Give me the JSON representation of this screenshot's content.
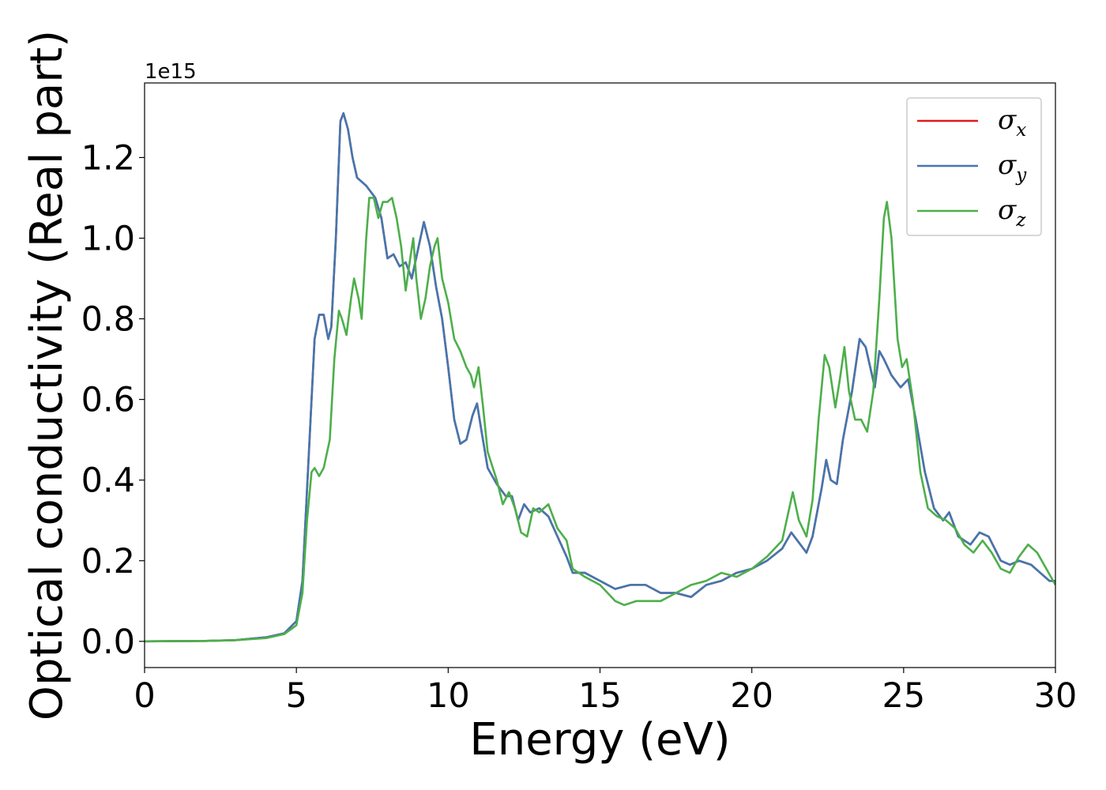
{
  "chart_data": {
    "type": "line",
    "xlabel": "Energy (eV)",
    "ylabel": "Optical conductivity (Real part)",
    "offset_text": "1e15",
    "xlim": [
      0,
      30
    ],
    "ylim": [
      -0.065,
      1.385
    ],
    "x_ticks": [
      "0",
      "5",
      "10",
      "15",
      "20",
      "25",
      "30"
    ],
    "y_ticks": [
      "0.0",
      "0.2",
      "0.4",
      "0.6",
      "0.8",
      "1.0",
      "1.2"
    ],
    "grid": false,
    "legend_position": "top-right",
    "series": [
      {
        "name": "σx",
        "legend_main": "σ",
        "legend_sub": "x",
        "color": "#e41a1c",
        "points": [
          [
            0,
            0.0
          ],
          [
            2,
            0.001
          ],
          [
            3,
            0.003
          ],
          [
            4,
            0.01
          ],
          [
            4.6,
            0.02
          ],
          [
            5.0,
            0.05
          ],
          [
            5.2,
            0.15
          ],
          [
            5.4,
            0.45
          ],
          [
            5.6,
            0.75
          ],
          [
            5.75,
            0.81
          ],
          [
            5.9,
            0.81
          ],
          [
            6.05,
            0.75
          ],
          [
            6.15,
            0.78
          ],
          [
            6.3,
            1.0
          ],
          [
            6.45,
            1.29
          ],
          [
            6.55,
            1.31
          ],
          [
            6.7,
            1.27
          ],
          [
            6.85,
            1.2
          ],
          [
            7.0,
            1.15
          ],
          [
            7.3,
            1.13
          ],
          [
            7.6,
            1.1
          ],
          [
            7.8,
            1.05
          ],
          [
            8.0,
            0.95
          ],
          [
            8.2,
            0.96
          ],
          [
            8.4,
            0.93
          ],
          [
            8.6,
            0.94
          ],
          [
            8.8,
            0.9
          ],
          [
            9.0,
            0.97
          ],
          [
            9.2,
            1.04
          ],
          [
            9.4,
            0.98
          ],
          [
            9.6,
            0.88
          ],
          [
            9.8,
            0.8
          ],
          [
            10.0,
            0.68
          ],
          [
            10.2,
            0.55
          ],
          [
            10.4,
            0.49
          ],
          [
            10.6,
            0.5
          ],
          [
            10.8,
            0.56
          ],
          [
            10.95,
            0.59
          ],
          [
            11.1,
            0.52
          ],
          [
            11.3,
            0.43
          ],
          [
            11.6,
            0.39
          ],
          [
            11.9,
            0.36
          ],
          [
            12.1,
            0.36
          ],
          [
            12.3,
            0.3
          ],
          [
            12.5,
            0.34
          ],
          [
            12.7,
            0.32
          ],
          [
            13.0,
            0.33
          ],
          [
            13.3,
            0.31
          ],
          [
            13.6,
            0.26
          ],
          [
            13.9,
            0.21
          ],
          [
            14.1,
            0.17
          ],
          [
            14.5,
            0.17
          ],
          [
            15.0,
            0.15
          ],
          [
            15.5,
            0.13
          ],
          [
            16.0,
            0.14
          ],
          [
            16.5,
            0.14
          ],
          [
            17.0,
            0.12
          ],
          [
            17.5,
            0.12
          ],
          [
            18.0,
            0.11
          ],
          [
            18.5,
            0.14
          ],
          [
            19.0,
            0.15
          ],
          [
            19.5,
            0.17
          ],
          [
            20.0,
            0.18
          ],
          [
            20.5,
            0.2
          ],
          [
            21.0,
            0.23
          ],
          [
            21.3,
            0.27
          ],
          [
            21.6,
            0.24
          ],
          [
            21.8,
            0.22
          ],
          [
            22.0,
            0.26
          ],
          [
            22.3,
            0.38
          ],
          [
            22.45,
            0.45
          ],
          [
            22.6,
            0.4
          ],
          [
            22.8,
            0.39
          ],
          [
            23.0,
            0.5
          ],
          [
            23.3,
            0.62
          ],
          [
            23.55,
            0.75
          ],
          [
            23.75,
            0.73
          ],
          [
            23.9,
            0.68
          ],
          [
            24.05,
            0.63
          ],
          [
            24.2,
            0.72
          ],
          [
            24.35,
            0.7
          ],
          [
            24.6,
            0.66
          ],
          [
            24.9,
            0.63
          ],
          [
            25.15,
            0.65
          ],
          [
            25.4,
            0.55
          ],
          [
            25.7,
            0.42
          ],
          [
            26.0,
            0.33
          ],
          [
            26.3,
            0.3
          ],
          [
            26.5,
            0.32
          ],
          [
            26.8,
            0.26
          ],
          [
            27.2,
            0.24
          ],
          [
            27.5,
            0.27
          ],
          [
            27.8,
            0.26
          ],
          [
            28.2,
            0.2
          ],
          [
            28.5,
            0.19
          ],
          [
            28.8,
            0.2
          ],
          [
            29.2,
            0.19
          ],
          [
            29.5,
            0.17
          ],
          [
            29.8,
            0.15
          ],
          [
            30.0,
            0.15
          ]
        ]
      },
      {
        "name": "σy",
        "legend_main": "σ",
        "legend_sub": "y",
        "color": "#4277b0",
        "points": [
          [
            0,
            0.0
          ],
          [
            2,
            0.001
          ],
          [
            3,
            0.003
          ],
          [
            4,
            0.01
          ],
          [
            4.6,
            0.02
          ],
          [
            5.0,
            0.05
          ],
          [
            5.2,
            0.15
          ],
          [
            5.4,
            0.45
          ],
          [
            5.6,
            0.75
          ],
          [
            5.75,
            0.81
          ],
          [
            5.9,
            0.81
          ],
          [
            6.05,
            0.75
          ],
          [
            6.15,
            0.78
          ],
          [
            6.3,
            1.0
          ],
          [
            6.45,
            1.29
          ],
          [
            6.55,
            1.31
          ],
          [
            6.7,
            1.27
          ],
          [
            6.85,
            1.2
          ],
          [
            7.0,
            1.15
          ],
          [
            7.3,
            1.13
          ],
          [
            7.6,
            1.1
          ],
          [
            7.8,
            1.05
          ],
          [
            8.0,
            0.95
          ],
          [
            8.2,
            0.96
          ],
          [
            8.4,
            0.93
          ],
          [
            8.6,
            0.94
          ],
          [
            8.8,
            0.9
          ],
          [
            9.0,
            0.97
          ],
          [
            9.2,
            1.04
          ],
          [
            9.4,
            0.98
          ],
          [
            9.6,
            0.88
          ],
          [
            9.8,
            0.8
          ],
          [
            10.0,
            0.68
          ],
          [
            10.2,
            0.55
          ],
          [
            10.4,
            0.49
          ],
          [
            10.6,
            0.5
          ],
          [
            10.8,
            0.56
          ],
          [
            10.95,
            0.59
          ],
          [
            11.1,
            0.52
          ],
          [
            11.3,
            0.43
          ],
          [
            11.6,
            0.39
          ],
          [
            11.9,
            0.36
          ],
          [
            12.1,
            0.36
          ],
          [
            12.3,
            0.3
          ],
          [
            12.5,
            0.34
          ],
          [
            12.7,
            0.32
          ],
          [
            13.0,
            0.33
          ],
          [
            13.3,
            0.31
          ],
          [
            13.6,
            0.26
          ],
          [
            13.9,
            0.21
          ],
          [
            14.1,
            0.17
          ],
          [
            14.5,
            0.17
          ],
          [
            15.0,
            0.15
          ],
          [
            15.5,
            0.13
          ],
          [
            16.0,
            0.14
          ],
          [
            16.5,
            0.14
          ],
          [
            17.0,
            0.12
          ],
          [
            17.5,
            0.12
          ],
          [
            18.0,
            0.11
          ],
          [
            18.5,
            0.14
          ],
          [
            19.0,
            0.15
          ],
          [
            19.5,
            0.17
          ],
          [
            20.0,
            0.18
          ],
          [
            20.5,
            0.2
          ],
          [
            21.0,
            0.23
          ],
          [
            21.3,
            0.27
          ],
          [
            21.6,
            0.24
          ],
          [
            21.8,
            0.22
          ],
          [
            22.0,
            0.26
          ],
          [
            22.3,
            0.38
          ],
          [
            22.45,
            0.45
          ],
          [
            22.6,
            0.4
          ],
          [
            22.8,
            0.39
          ],
          [
            23.0,
            0.5
          ],
          [
            23.3,
            0.62
          ],
          [
            23.55,
            0.75
          ],
          [
            23.75,
            0.73
          ],
          [
            23.9,
            0.68
          ],
          [
            24.05,
            0.63
          ],
          [
            24.2,
            0.72
          ],
          [
            24.35,
            0.7
          ],
          [
            24.6,
            0.66
          ],
          [
            24.9,
            0.63
          ],
          [
            25.15,
            0.65
          ],
          [
            25.4,
            0.55
          ],
          [
            25.7,
            0.42
          ],
          [
            26.0,
            0.33
          ],
          [
            26.3,
            0.3
          ],
          [
            26.5,
            0.32
          ],
          [
            26.8,
            0.26
          ],
          [
            27.2,
            0.24
          ],
          [
            27.5,
            0.27
          ],
          [
            27.8,
            0.26
          ],
          [
            28.2,
            0.2
          ],
          [
            28.5,
            0.19
          ],
          [
            28.8,
            0.2
          ],
          [
            29.2,
            0.19
          ],
          [
            29.5,
            0.17
          ],
          [
            29.8,
            0.15
          ],
          [
            30.0,
            0.15
          ]
        ]
      },
      {
        "name": "σz",
        "legend_main": "σ",
        "legend_sub": "z",
        "color": "#4daf4a",
        "points": [
          [
            0,
            0.0
          ],
          [
            2,
            0.001
          ],
          [
            3,
            0.003
          ],
          [
            4,
            0.008
          ],
          [
            4.6,
            0.018
          ],
          [
            5.0,
            0.04
          ],
          [
            5.2,
            0.12
          ],
          [
            5.35,
            0.3
          ],
          [
            5.5,
            0.42
          ],
          [
            5.6,
            0.43
          ],
          [
            5.75,
            0.41
          ],
          [
            5.9,
            0.43
          ],
          [
            6.1,
            0.5
          ],
          [
            6.25,
            0.7
          ],
          [
            6.4,
            0.82
          ],
          [
            6.5,
            0.8
          ],
          [
            6.65,
            0.76
          ],
          [
            6.8,
            0.85
          ],
          [
            6.9,
            0.9
          ],
          [
            7.05,
            0.85
          ],
          [
            7.15,
            0.8
          ],
          [
            7.3,
            1.0
          ],
          [
            7.4,
            1.1
          ],
          [
            7.55,
            1.1
          ],
          [
            7.7,
            1.05
          ],
          [
            7.85,
            1.09
          ],
          [
            8.0,
            1.09
          ],
          [
            8.15,
            1.1
          ],
          [
            8.3,
            1.05
          ],
          [
            8.45,
            0.98
          ],
          [
            8.6,
            0.87
          ],
          [
            8.75,
            0.95
          ],
          [
            8.85,
            1.0
          ],
          [
            8.95,
            0.9
          ],
          [
            9.1,
            0.8
          ],
          [
            9.25,
            0.85
          ],
          [
            9.4,
            0.93
          ],
          [
            9.55,
            0.98
          ],
          [
            9.65,
            1.0
          ],
          [
            9.8,
            0.9
          ],
          [
            10.0,
            0.84
          ],
          [
            10.2,
            0.75
          ],
          [
            10.4,
            0.72
          ],
          [
            10.6,
            0.68
          ],
          [
            10.75,
            0.66
          ],
          [
            10.85,
            0.63
          ],
          [
            11.0,
            0.68
          ],
          [
            11.15,
            0.58
          ],
          [
            11.3,
            0.47
          ],
          [
            11.6,
            0.4
          ],
          [
            11.8,
            0.34
          ],
          [
            12.0,
            0.37
          ],
          [
            12.2,
            0.33
          ],
          [
            12.4,
            0.27
          ],
          [
            12.6,
            0.26
          ],
          [
            12.8,
            0.33
          ],
          [
            13.0,
            0.32
          ],
          [
            13.3,
            0.34
          ],
          [
            13.6,
            0.28
          ],
          [
            13.9,
            0.25
          ],
          [
            14.1,
            0.18
          ],
          [
            14.5,
            0.16
          ],
          [
            15.0,
            0.14
          ],
          [
            15.5,
            0.1
          ],
          [
            15.8,
            0.09
          ],
          [
            16.2,
            0.1
          ],
          [
            16.6,
            0.1
          ],
          [
            17.0,
            0.1
          ],
          [
            17.5,
            0.12
          ],
          [
            18.0,
            0.14
          ],
          [
            18.5,
            0.15
          ],
          [
            19.0,
            0.17
          ],
          [
            19.5,
            0.16
          ],
          [
            20.0,
            0.18
          ],
          [
            20.5,
            0.21
          ],
          [
            21.0,
            0.25
          ],
          [
            21.35,
            0.37
          ],
          [
            21.55,
            0.3
          ],
          [
            21.8,
            0.26
          ],
          [
            22.0,
            0.35
          ],
          [
            22.2,
            0.55
          ],
          [
            22.4,
            0.71
          ],
          [
            22.55,
            0.68
          ],
          [
            22.75,
            0.58
          ],
          [
            22.9,
            0.65
          ],
          [
            23.05,
            0.73
          ],
          [
            23.2,
            0.62
          ],
          [
            23.4,
            0.55
          ],
          [
            23.6,
            0.55
          ],
          [
            23.8,
            0.52
          ],
          [
            24.0,
            0.62
          ],
          [
            24.2,
            0.85
          ],
          [
            24.35,
            1.05
          ],
          [
            24.45,
            1.09
          ],
          [
            24.6,
            1.0
          ],
          [
            24.8,
            0.75
          ],
          [
            24.95,
            0.68
          ],
          [
            25.1,
            0.7
          ],
          [
            25.3,
            0.6
          ],
          [
            25.55,
            0.42
          ],
          [
            25.8,
            0.33
          ],
          [
            26.1,
            0.31
          ],
          [
            26.4,
            0.3
          ],
          [
            26.7,
            0.28
          ],
          [
            27.0,
            0.24
          ],
          [
            27.3,
            0.22
          ],
          [
            27.6,
            0.25
          ],
          [
            27.9,
            0.22
          ],
          [
            28.2,
            0.18
          ],
          [
            28.5,
            0.17
          ],
          [
            28.8,
            0.21
          ],
          [
            29.1,
            0.24
          ],
          [
            29.4,
            0.22
          ],
          [
            29.7,
            0.18
          ],
          [
            30.0,
            0.14
          ]
        ]
      }
    ]
  }
}
